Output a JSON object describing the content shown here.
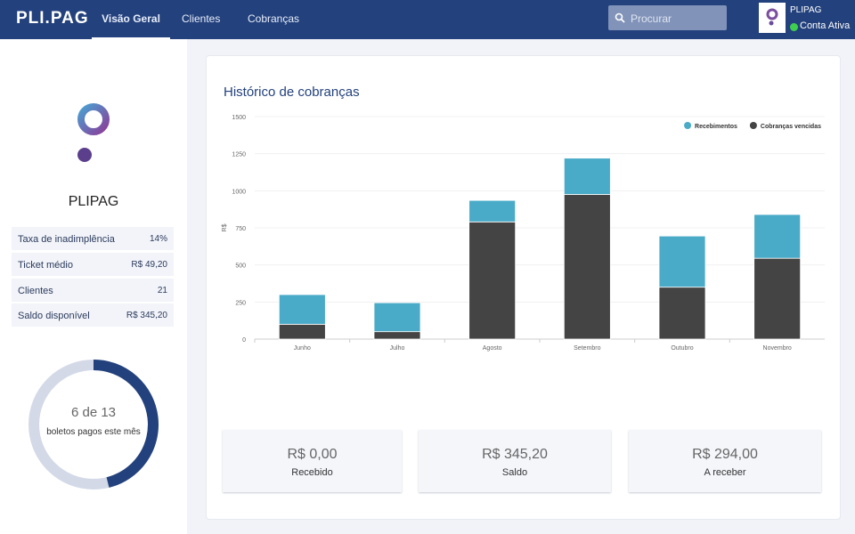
{
  "nav": {
    "brand": "PLI.PAG",
    "tabs": [
      "Visão Geral",
      "Clientes",
      "Cobranças"
    ],
    "search_placeholder": "Procurar",
    "account": {
      "name": "PLIPAG",
      "status": "Conta Ativa"
    }
  },
  "sidebar": {
    "name": "PLIPAG",
    "stats": [
      {
        "label": "Taxa de inadimplência",
        "value": "14%"
      },
      {
        "label": "Ticket médio",
        "value": "R$ 49,20"
      },
      {
        "label": "Clientes",
        "value": "21"
      },
      {
        "label": "Saldo disponível",
        "value": "R$ 345,20"
      }
    ],
    "progress": {
      "value": 6,
      "total": 13,
      "label": "6 de 13",
      "caption": "boletos pagos este mês"
    }
  },
  "chart_data": {
    "type": "stacked_bar",
    "title": "Histórico de cobranças",
    "y_label": "R$",
    "categories": [
      "Junho",
      "Julho",
      "Agosto",
      "Setembro",
      "Outubro",
      "Novembro"
    ],
    "series": [
      {
        "name": "Cobranças vencidas",
        "color": "#444444",
        "values": [
          100,
          50,
          790,
          975,
          350,
          545
        ]
      },
      {
        "name": "Recebimentos",
        "color": "#4aabc8",
        "values": [
          200,
          195,
          145,
          245,
          345,
          295
        ]
      }
    ],
    "ylim": [
      0,
      1500
    ],
    "yticks": [
      0,
      250,
      500,
      750,
      1000,
      1250,
      1500
    ],
    "grid": true,
    "legend": "top-right"
  },
  "cards": [
    {
      "value": "R$ 0,00",
      "label": "Recebido"
    },
    {
      "value": "R$ 345,20",
      "label": "Saldo"
    },
    {
      "value": "R$ 294,00",
      "label": "A receber"
    }
  ]
}
